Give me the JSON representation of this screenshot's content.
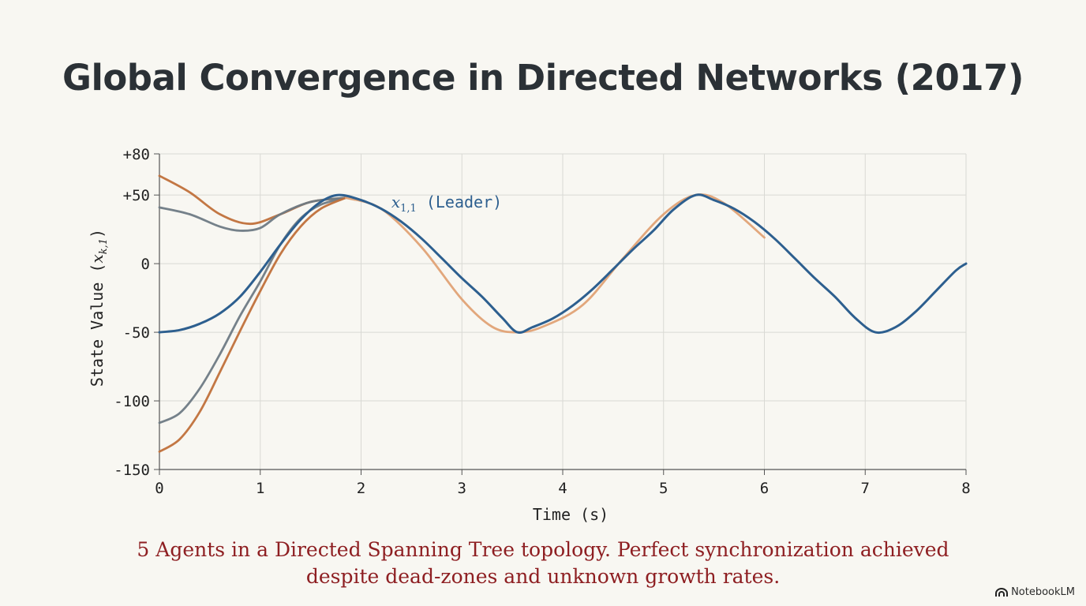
{
  "title": "Global Convergence in Directed Networks (2017)",
  "caption": {
    "line1": "5 Agents in a Directed Spanning Tree topology. Perfect synchronization achieved",
    "line2": "despite dead-zones and unknown growth rates."
  },
  "brand": {
    "label": "NotebookLM",
    "icon": "notebooklm-logo-icon"
  },
  "chart_data": {
    "type": "line",
    "xlabel": "Time (s)",
    "ylabel": "State Value (x_{k,1})",
    "xlim": [
      0,
      8
    ],
    "ylim": [
      -150,
      80
    ],
    "xticks": [
      0,
      1,
      2,
      3,
      4,
      5,
      6,
      7,
      8
    ],
    "xtick_labels": [
      "0",
      "1",
      "2",
      "3",
      "4",
      "5",
      "6",
      "7",
      "8"
    ],
    "yticks": [
      80,
      50,
      0,
      -50,
      -100,
      -150
    ],
    "ytick_labels": [
      "+80",
      "+50",
      "0",
      "-50",
      "-100",
      "-150"
    ],
    "grid": true,
    "annotation": {
      "text": "x_{1,1} (Leader)",
      "x": 2.3,
      "y": 41
    },
    "series": [
      {
        "color": "#c0703a",
        "x": [
          0,
          0.3,
          0.6,
          0.9,
          1.2,
          1.5,
          1.85
        ],
        "y": [
          64,
          52,
          36,
          29,
          36,
          45,
          48
        ]
      },
      {
        "color": "#6e7a84",
        "x": [
          0,
          0.3,
          0.6,
          0.8,
          1.0,
          1.2,
          1.5,
          1.85
        ],
        "y": [
          41,
          36,
          27,
          24,
          26,
          36,
          45,
          48
        ]
      },
      {
        "color": "#6e7a84",
        "x": [
          0,
          0.2,
          0.4,
          0.6,
          0.8,
          1.0,
          1.2,
          1.4,
          1.6,
          1.85
        ],
        "y": [
          -116,
          -109,
          -91,
          -66,
          -38,
          -13,
          14,
          33,
          43,
          48
        ]
      },
      {
        "color": "#c0703a",
        "x": [
          0,
          0.2,
          0.4,
          0.6,
          0.8,
          1.0,
          1.2,
          1.4,
          1.6,
          1.85
        ],
        "y": [
          -137,
          -128,
          -108,
          -79,
          -49,
          -20,
          7,
          27,
          40,
          48
        ]
      },
      {
        "color": "#e0a275",
        "x": [
          1.85,
          2.2,
          2.6,
          3.0,
          3.3,
          3.55,
          3.8,
          4.2,
          4.6,
          5.0,
          5.32,
          5.6,
          6.0
        ],
        "y": [
          48,
          40,
          12,
          -26,
          -46,
          -50,
          -46,
          -30,
          4,
          36,
          50,
          44,
          19
        ]
      },
      {
        "name": "x_{1,1} (Leader)",
        "color": "#2d5f8f",
        "x": [
          0,
          0.2,
          0.4,
          0.6,
          0.8,
          1.0,
          1.2,
          1.4,
          1.6,
          1.78,
          2.0,
          2.2,
          2.4,
          2.6,
          2.8,
          3.0,
          3.2,
          3.4,
          3.55,
          3.7,
          3.9,
          4.1,
          4.3,
          4.5,
          4.7,
          4.9,
          5.1,
          5.32,
          5.5,
          5.7,
          5.9,
          6.1,
          6.3,
          6.5,
          6.7,
          6.9,
          7.1,
          7.3,
          7.5,
          7.7,
          7.9,
          8.0
        ],
        "y": [
          -50,
          -48.4,
          -43.8,
          -36.2,
          -24,
          -6,
          14,
          32,
          45,
          50,
          46.3,
          40,
          30.5,
          18.3,
          4,
          -10.6,
          -24.1,
          -39.5,
          -50,
          -46.3,
          -40,
          -30.5,
          -18.3,
          -4,
          10.6,
          24.1,
          39.5,
          50,
          46.3,
          40,
          30.5,
          18.3,
          4,
          -10.6,
          -24.1,
          -39.5,
          -50,
          -46.3,
          -35,
          -20,
          -5,
          0
        ]
      }
    ]
  }
}
